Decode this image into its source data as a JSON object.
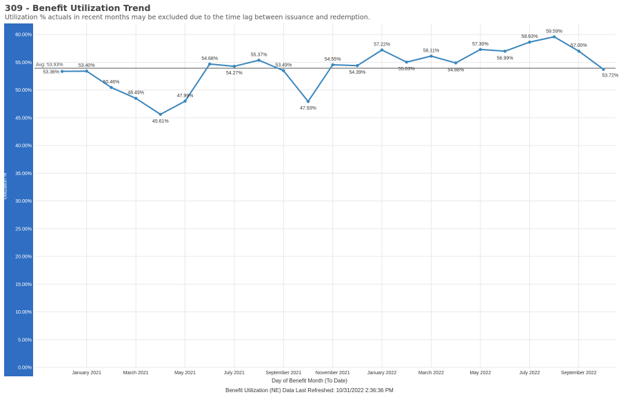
{
  "header": {
    "title": "309 - Benefit Utilization Trend",
    "subtitle": "Utilization % actuals in recent months may be excluded due to the time lag between issuance and redemption."
  },
  "footer": {
    "refresh_text": "Benefit Utilization (NE) Data Last Refreshed: 10/31/2022 2:36:36 PM"
  },
  "colors": {
    "line": "#3a86bd",
    "axis_band": "#2f6ec2",
    "avg_line": "#555555",
    "grid": "#e8e8e8"
  },
  "chart_data": {
    "type": "line",
    "title": "309 - Benefit Utilization Trend",
    "xlabel": "Day of Benefit Month (To Date)",
    "ylabel": "Utilization %",
    "ylim": [
      0,
      62
    ],
    "yticks": [
      "0.00%",
      "5.00%",
      "10.00%",
      "15.00%",
      "20.00%",
      "25.00%",
      "30.00%",
      "35.00%",
      "40.00%",
      "45.00%",
      "50.00%",
      "55.00%",
      "60.00%"
    ],
    "grid": true,
    "x_tick_labels": [
      "January 2021",
      "March 2021",
      "May 2021",
      "July 2021",
      "September 2021",
      "November 2021",
      "January 2022",
      "March 2022",
      "May 2022",
      "July 2022",
      "September 2022"
    ],
    "categories": [
      "2020-12",
      "2021-01",
      "2021-02",
      "2021-03",
      "2021-04",
      "2021-05",
      "2021-06",
      "2021-07",
      "2021-08",
      "2021-09",
      "2021-10",
      "2021-11",
      "2021-12",
      "2022-01",
      "2022-02",
      "2022-03",
      "2022-04",
      "2022-05",
      "2022-06",
      "2022-07",
      "2022-08",
      "2022-09",
      "2022-10"
    ],
    "values": [
      53.36,
      53.4,
      50.46,
      48.49,
      45.61,
      47.99,
      54.68,
      54.27,
      55.37,
      53.49,
      47.93,
      54.55,
      54.39,
      57.22,
      55.03,
      56.11,
      54.88,
      57.3,
      56.99,
      58.63,
      59.59,
      57.0,
      53.72
    ],
    "data_labels": [
      "53.36%",
      "53.40%",
      "50.46%",
      "48.49%",
      "45.61%",
      "47.99%",
      "54.68%",
      "54.27%",
      "55.37%",
      "53.49%",
      "47.93%",
      "54.55%",
      "54.39%",
      "57.22%",
      "55.03%",
      "56.11%",
      "54.88%",
      "57.30%",
      "56.99%",
      "58.63%",
      "59.59%",
      "57.00%",
      "53.72%"
    ],
    "reference_line": {
      "label": "Avg: 53.93%",
      "value": 53.93
    }
  }
}
